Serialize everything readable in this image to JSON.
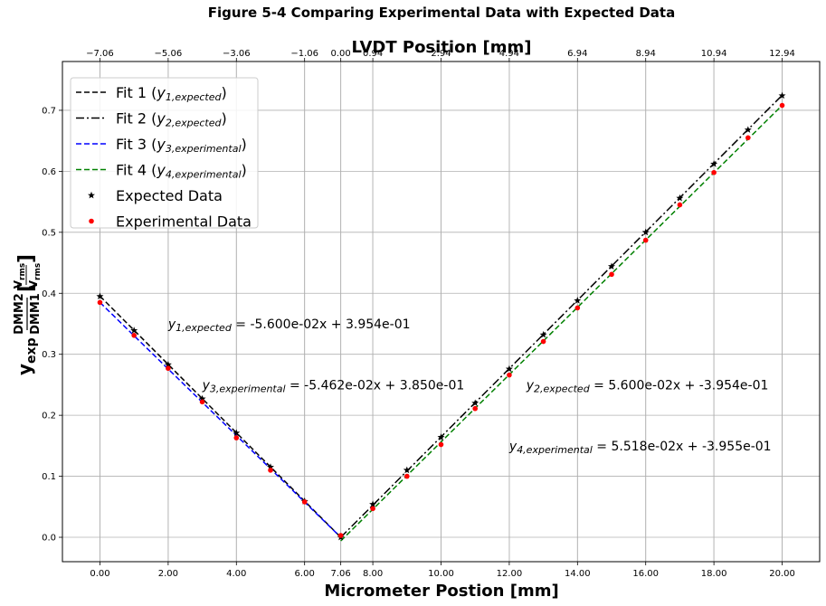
{
  "chart_data": {
    "type": "line",
    "title": "Figure 5-4 Comparing Experimental Data with Expected Data",
    "xlabel": "Micrometer Postion [mm]",
    "top_xlabel": "LVDT Position [mm]",
    "xlim": [
      -1.1,
      21.1
    ],
    "ylim": [
      -0.04,
      0.78
    ],
    "grid": true,
    "legend_position": "upper-left",
    "x_ticks": [
      {
        "value": 0,
        "label": "0.00"
      },
      {
        "value": 2,
        "label": "2.00"
      },
      {
        "value": 4,
        "label": "4.00"
      },
      {
        "value": 6,
        "label": "6.00"
      },
      {
        "value": 7.06,
        "label": "7.06"
      },
      {
        "value": 8,
        "label": "8.00"
      },
      {
        "value": 10,
        "label": "10.00"
      },
      {
        "value": 12,
        "label": "12.00"
      },
      {
        "value": 14,
        "label": "14.00"
      },
      {
        "value": 16,
        "label": "16.00"
      },
      {
        "value": 18,
        "label": "18.00"
      },
      {
        "value": 20,
        "label": "20.00"
      }
    ],
    "top_ticks": [
      {
        "value": 0,
        "label": "−7.06"
      },
      {
        "value": 2,
        "label": "−5.06"
      },
      {
        "value": 4,
        "label": "−3.06"
      },
      {
        "value": 6,
        "label": "−1.06"
      },
      {
        "value": 7.06,
        "label": "0.00"
      },
      {
        "value": 8,
        "label": "0.94"
      },
      {
        "value": 10,
        "label": "2.94"
      },
      {
        "value": 12,
        "label": "4.94"
      },
      {
        "value": 14,
        "label": "6.94"
      },
      {
        "value": 16,
        "label": "8.94"
      },
      {
        "value": 18,
        "label": "10.94"
      },
      {
        "value": 20,
        "label": "12.94"
      }
    ],
    "y_ticks": [
      {
        "value": 0.0,
        "label": "0.0"
      },
      {
        "value": 0.1,
        "label": "0.1"
      },
      {
        "value": 0.2,
        "label": "0.2"
      },
      {
        "value": 0.3,
        "label": "0.3"
      },
      {
        "value": 0.4,
        "label": "0.4"
      },
      {
        "value": 0.5,
        "label": "0.5"
      },
      {
        "value": 0.6,
        "label": "0.6"
      },
      {
        "value": 0.7,
        "label": "0.7"
      }
    ],
    "series": [
      {
        "name": "Fit 1 (y1,expected)",
        "kind": "line",
        "style": "dashed",
        "color": "#000000",
        "x": [
          0,
          7.06
        ],
        "y": [
          0.3954,
          0.0
        ]
      },
      {
        "name": "Fit 2 (y2,expected)",
        "kind": "line",
        "style": "dashdot",
        "color": "#000000",
        "x": [
          7.06,
          20
        ],
        "y": [
          0.0,
          0.7246
        ]
      },
      {
        "name": "Fit 3 (y3,experimental)",
        "kind": "line",
        "style": "dashed",
        "color": "#0000ff",
        "x": [
          0,
          7.06
        ],
        "y": [
          0.385,
          0.0
        ]
      },
      {
        "name": "Fit 4 (y4,experimental)",
        "kind": "line",
        "style": "dashed",
        "color": "#008000",
        "x": [
          7.06,
          20
        ],
        "y": [
          -0.0059,
          0.7081
        ]
      },
      {
        "name": "Expected Data",
        "kind": "scatter",
        "marker": "star",
        "color": "#000000",
        "x": [
          0,
          1,
          2,
          3,
          4,
          5,
          6,
          7.06,
          8,
          9,
          10,
          11,
          12,
          13,
          14,
          15,
          16,
          17,
          18,
          19,
          20
        ],
        "y": [
          0.395,
          0.339,
          0.283,
          0.227,
          0.171,
          0.115,
          0.059,
          0.0,
          0.054,
          0.11,
          0.164,
          0.22,
          0.276,
          0.332,
          0.388,
          0.444,
          0.5,
          0.556,
          0.612,
          0.668,
          0.724
        ]
      },
      {
        "name": "Experimental Data",
        "kind": "scatter",
        "marker": "circle",
        "color": "#ff0000",
        "x": [
          0,
          1,
          2,
          3,
          4,
          5,
          6,
          7.06,
          8,
          9,
          10,
          11,
          12,
          13,
          14,
          15,
          16,
          17,
          18,
          19,
          20
        ],
        "y": [
          0.385,
          0.331,
          0.277,
          0.222,
          0.163,
          0.11,
          0.058,
          0.003,
          0.047,
          0.1,
          0.152,
          0.211,
          0.266,
          0.321,
          0.376,
          0.431,
          0.487,
          0.545,
          0.598,
          0.655,
          0.708
        ]
      }
    ],
    "legend": [
      {
        "pre": "Fit 1 (",
        "var": "y",
        "sub": "1,expected",
        "post": ")"
      },
      {
        "pre": "Fit 2 (",
        "var": "y",
        "sub": "2,expected",
        "post": ")"
      },
      {
        "pre": "Fit 3 (",
        "var": "y",
        "sub": "3,experimental",
        "post": ")"
      },
      {
        "pre": "Fit 4 (",
        "var": "y",
        "sub": "4,experimental",
        "post": ")"
      },
      {
        "pre": "Expected Data",
        "var": "",
        "sub": "",
        "post": ""
      },
      {
        "pre": "Experimental Data",
        "var": "",
        "sub": "",
        "post": ""
      }
    ],
    "annotations": [
      {
        "var": "y",
        "sub": "1,expected",
        "text": " = -5.600e-02x + 3.954e-01",
        "x": 2.0,
        "y": 0.35
      },
      {
        "var": "y",
        "sub": "3,experimental",
        "text": " = -5.462e-02x + 3.850e-01",
        "x": 3.0,
        "y": 0.25
      },
      {
        "var": "y",
        "sub": "2,expected",
        "text": " = 5.600e-02x + -3.954e-01",
        "x": 12.5,
        "y": 0.25
      },
      {
        "var": "y",
        "sub": "4,experimental",
        "text": " = 5.518e-02x + -3.955e-01",
        "x": 12.0,
        "y": 0.15
      }
    ],
    "ylabel": {
      "main": "y",
      "main_sub": "exp",
      "num": "DMM2",
      "den": "DMM1",
      "unit_num": "V",
      "unit_num_sub": "rms",
      "unit_den": "V",
      "unit_den_sub": "rms"
    }
  }
}
